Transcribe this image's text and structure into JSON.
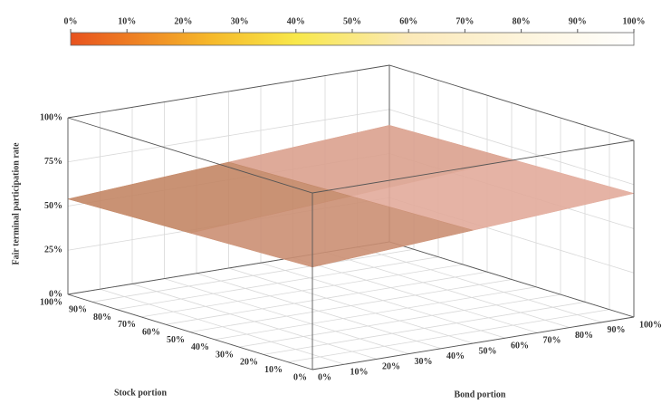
{
  "chart_data": {
    "type": "surface3d",
    "colorbar": {
      "lim": [
        0,
        100
      ],
      "ticks": [
        {
          "value": 0,
          "label": "0%"
        },
        {
          "value": 10,
          "label": "10%"
        },
        {
          "value": 20,
          "label": "20%"
        },
        {
          "value": 30,
          "label": "30%"
        },
        {
          "value": 40,
          "label": "40%"
        },
        {
          "value": 50,
          "label": "50%"
        },
        {
          "value": 60,
          "label": "60%"
        },
        {
          "value": 70,
          "label": "70%"
        },
        {
          "value": 80,
          "label": "80%"
        },
        {
          "value": 90,
          "label": "90%"
        },
        {
          "value": 100,
          "label": "100%"
        }
      ],
      "colormap": [
        {
          "value": 0,
          "color": "#e8521e"
        },
        {
          "value": 25,
          "color": "#f6b92a"
        },
        {
          "value": 40,
          "color": "#f8e84a"
        },
        {
          "value": 60,
          "color": "#fbe9b8"
        },
        {
          "value": 100,
          "color": "#ffffff"
        }
      ]
    },
    "zlabel": "Fair terminal participation rate",
    "xlabel": "Bond portion",
    "ylabel": "Stock portion",
    "xlim": [
      0,
      100
    ],
    "xticks": [
      {
        "value": 0,
        "label": "0%"
      },
      {
        "value": 10,
        "label": "10%"
      },
      {
        "value": 20,
        "label": "20%"
      },
      {
        "value": 30,
        "label": "30%"
      },
      {
        "value": 40,
        "label": "40%"
      },
      {
        "value": 50,
        "label": "50%"
      },
      {
        "value": 60,
        "label": "60%"
      },
      {
        "value": 70,
        "label": "70%"
      },
      {
        "value": 80,
        "label": "80%"
      },
      {
        "value": 90,
        "label": "90%"
      },
      {
        "value": 100,
        "label": "100%"
      }
    ],
    "ylim": [
      0,
      100
    ],
    "yticks": [
      {
        "value": 0,
        "label": "0%"
      },
      {
        "value": 10,
        "label": "10%"
      },
      {
        "value": 20,
        "label": "20%"
      },
      {
        "value": 30,
        "label": "30%"
      },
      {
        "value": 40,
        "label": "40%"
      },
      {
        "value": 50,
        "label": "50%"
      },
      {
        "value": 60,
        "label": "60%"
      },
      {
        "value": 70,
        "label": "70%"
      },
      {
        "value": 80,
        "label": "80%"
      },
      {
        "value": 90,
        "label": "90%"
      },
      {
        "value": 100,
        "label": "100%"
      }
    ],
    "zlim": [
      0,
      100
    ],
    "zticks": [
      {
        "value": 0,
        "label": "0%"
      },
      {
        "value": 25,
        "label": "25%"
      },
      {
        "value": 50,
        "label": "50%"
      },
      {
        "value": 75,
        "label": "75%"
      },
      {
        "value": 100,
        "label": "100%"
      }
    ],
    "x": [
      0,
      50,
      100
    ],
    "y": [
      0,
      50,
      100
    ],
    "z": [
      [
        58,
        64,
        70
      ],
      [
        56,
        62,
        68
      ],
      [
        54,
        60,
        66
      ]
    ],
    "surface_colors": [
      "#b3734a",
      "#f2bdb6"
    ],
    "grid": true
  }
}
